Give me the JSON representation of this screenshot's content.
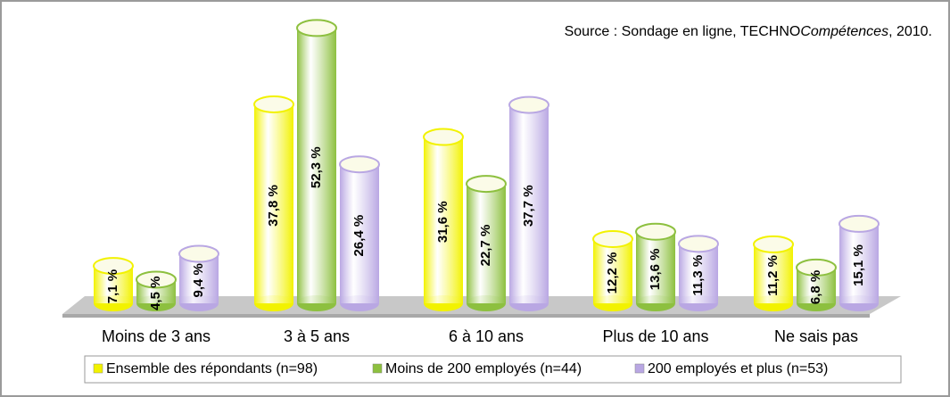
{
  "chart_data": {
    "type": "bar",
    "source": [
      "Source : Sondage en ligne, TECHNO",
      "Compétences",
      ", 2010."
    ],
    "categories": [
      "Moins de 3 ans",
      "3 à 5 ans",
      "6 à 10 ans",
      "Plus de 10 ans",
      "Ne sais pas"
    ],
    "series": [
      {
        "name": "Ensemble des répondants (n=98)",
        "color": "#f2f200",
        "values": [
          7.1,
          37.8,
          31.6,
          12.2,
          11.2
        ],
        "value_labels": [
          "7,1 %",
          "37,8 %",
          "31,6 %",
          "12,2 %",
          "11,2 %"
        ]
      },
      {
        "name": "Moins de 200 employés (n=44)",
        "color": "#8dc03f",
        "values": [
          4.5,
          52.3,
          22.7,
          13.6,
          6.8
        ],
        "value_labels": [
          "4,5 %",
          "52,3 %",
          "22,7 %",
          "13,6 %",
          "6,8 %"
        ]
      },
      {
        "name": "200 employés et plus (n=53)",
        "color": "#b9a7e3",
        "values": [
          9.4,
          26.4,
          37.7,
          11.3,
          15.1
        ],
        "value_labels": [
          "9,4 %",
          "26,4 %",
          "37,7 %",
          "11,3 %",
          "15,1 %"
        ]
      }
    ]
  }
}
